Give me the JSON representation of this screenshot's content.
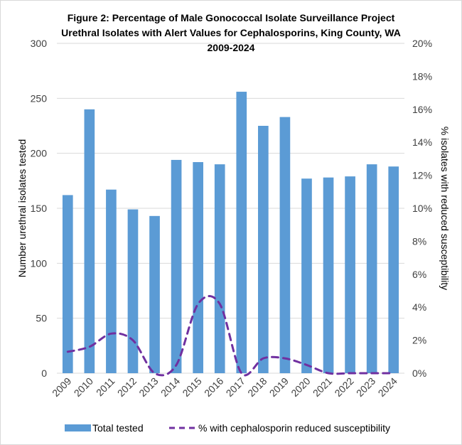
{
  "chart_data": {
    "type": "bar",
    "title_lines": [
      "Figure 2: Percentage of Male Gonococcal Isolate Surveillance Project",
      "Urethral Isolates with Alert Values for Cephalosporins, King County, WA",
      "2009-2024"
    ],
    "categories": [
      "2009",
      "2010",
      "2011",
      "2012",
      "2013",
      "2014",
      "2015",
      "2016",
      "2017",
      "2018",
      "2019",
      "2020",
      "2021",
      "2022",
      "2023",
      "2024"
    ],
    "series": [
      {
        "name": "Total tested",
        "type": "bar",
        "axis": "left",
        "color": "#5B9BD5",
        "values": [
          162,
          240,
          167,
          149,
          143,
          194,
          192,
          190,
          256,
          225,
          233,
          177,
          178,
          179,
          190,
          188
        ]
      },
      {
        "name": "% with cephalosporin reduced susceptibility",
        "type": "line",
        "style": "dashed",
        "axis": "right",
        "color": "#7030A0",
        "values": [
          1.3,
          1.6,
          2.4,
          2.0,
          0.0,
          0.5,
          4.2,
          4.2,
          0.0,
          0.9,
          0.9,
          0.5,
          0.0,
          0.0,
          0.0,
          0.0
        ]
      }
    ],
    "ylabel": "Number urethral isolates tested",
    "y2label": "% isolates with reduced susceptibility",
    "ylim": [
      0,
      300
    ],
    "y2lim": [
      0,
      20
    ],
    "yticks": [
      "0",
      "50",
      "100",
      "150",
      "200",
      "250",
      "300"
    ],
    "y2ticks": [
      "0%",
      "2%",
      "4%",
      "6%",
      "8%",
      "10%",
      "12%",
      "14%",
      "16%",
      "18%",
      "20%"
    ],
    "grid": true,
    "legend_position": "bottom"
  }
}
